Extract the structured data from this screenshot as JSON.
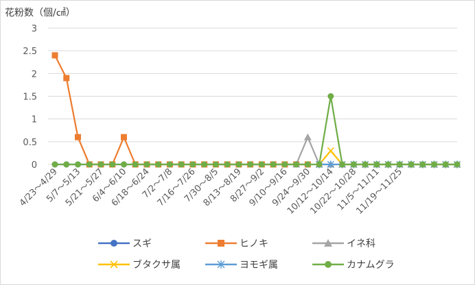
{
  "chart_data": {
    "type": "line",
    "ylabel": "花粉数（個/㎠）",
    "ylim": [
      0,
      3
    ],
    "yticks": [
      "0",
      "0.5",
      "1",
      "1.5",
      "2",
      "2.5",
      "3"
    ],
    "grid": true,
    "legend_position": "bottom",
    "x_tick_labels": [
      "4/23～4/29",
      "5/7～5/13",
      "5/21～5/27",
      "6/4～6/10",
      "6/18～6/24",
      "7/2～7/8",
      "7/16～7/26",
      "7/30～8/5",
      "8/13～8/19",
      "8/27～9/2",
      "9/10～9/16",
      "9/24～9/30",
      "10/12～10/14",
      "10/22～10/28",
      "11/5～11/11",
      "11/19～11/25"
    ],
    "series": [
      {
        "name": "スギ",
        "color": "#4472C4",
        "marker": "circle",
        "values": [
          0,
          0,
          0,
          0,
          0,
          0,
          0,
          0,
          0,
          0,
          0,
          0,
          0,
          0,
          0,
          0,
          0,
          0,
          0,
          0,
          0,
          0,
          0,
          null,
          null,
          null,
          null,
          null,
          null,
          null,
          null,
          null,
          null,
          null,
          null,
          null
        ]
      },
      {
        "name": "ヒノキ",
        "color": "#ED7D31",
        "marker": "square",
        "values": [
          2.4,
          1.9,
          0.6,
          0,
          0,
          0,
          0.6,
          0,
          0,
          0,
          0,
          0,
          0,
          0,
          0,
          0,
          0,
          0,
          0,
          0,
          0,
          0,
          0,
          null,
          null,
          null,
          null,
          null,
          null,
          null,
          null,
          null,
          null,
          null,
          null,
          null
        ]
      },
      {
        "name": "イネ科",
        "color": "#A5A5A5",
        "marker": "triangle",
        "values": [
          null,
          null,
          null,
          null,
          null,
          null,
          null,
          null,
          null,
          null,
          null,
          null,
          null,
          null,
          null,
          null,
          null,
          null,
          null,
          null,
          null,
          0,
          0.6,
          0,
          0,
          0,
          0,
          0,
          0,
          0,
          0,
          0,
          0,
          0,
          0,
          0
        ]
      },
      {
        "name": "ブタクサ属",
        "color": "#FFC000",
        "marker": "x",
        "values": [
          null,
          null,
          null,
          null,
          null,
          null,
          null,
          null,
          null,
          null,
          null,
          null,
          null,
          null,
          null,
          null,
          null,
          null,
          null,
          null,
          null,
          null,
          null,
          0,
          0.3,
          0,
          0,
          0,
          0,
          0,
          0,
          0,
          0,
          0,
          0,
          0
        ]
      },
      {
        "name": "ヨモギ属",
        "color": "#5B9BD5",
        "marker": "star",
        "values": [
          null,
          null,
          null,
          null,
          null,
          null,
          null,
          null,
          null,
          null,
          null,
          null,
          null,
          null,
          null,
          null,
          null,
          null,
          null,
          null,
          null,
          null,
          null,
          0,
          0,
          0,
          0,
          0,
          0,
          0,
          0,
          0,
          0,
          0,
          0,
          0
        ]
      },
      {
        "name": "カナムグラ",
        "color": "#70AD47",
        "marker": "circle",
        "values": [
          0,
          0,
          0,
          0,
          0,
          0,
          0,
          0,
          0,
          0,
          0,
          0,
          0,
          0,
          0,
          0,
          0,
          0,
          0,
          0,
          0,
          0,
          0,
          0,
          1.5,
          0,
          0,
          0,
          0,
          0,
          0,
          0,
          0,
          0,
          0,
          0
        ]
      }
    ]
  }
}
